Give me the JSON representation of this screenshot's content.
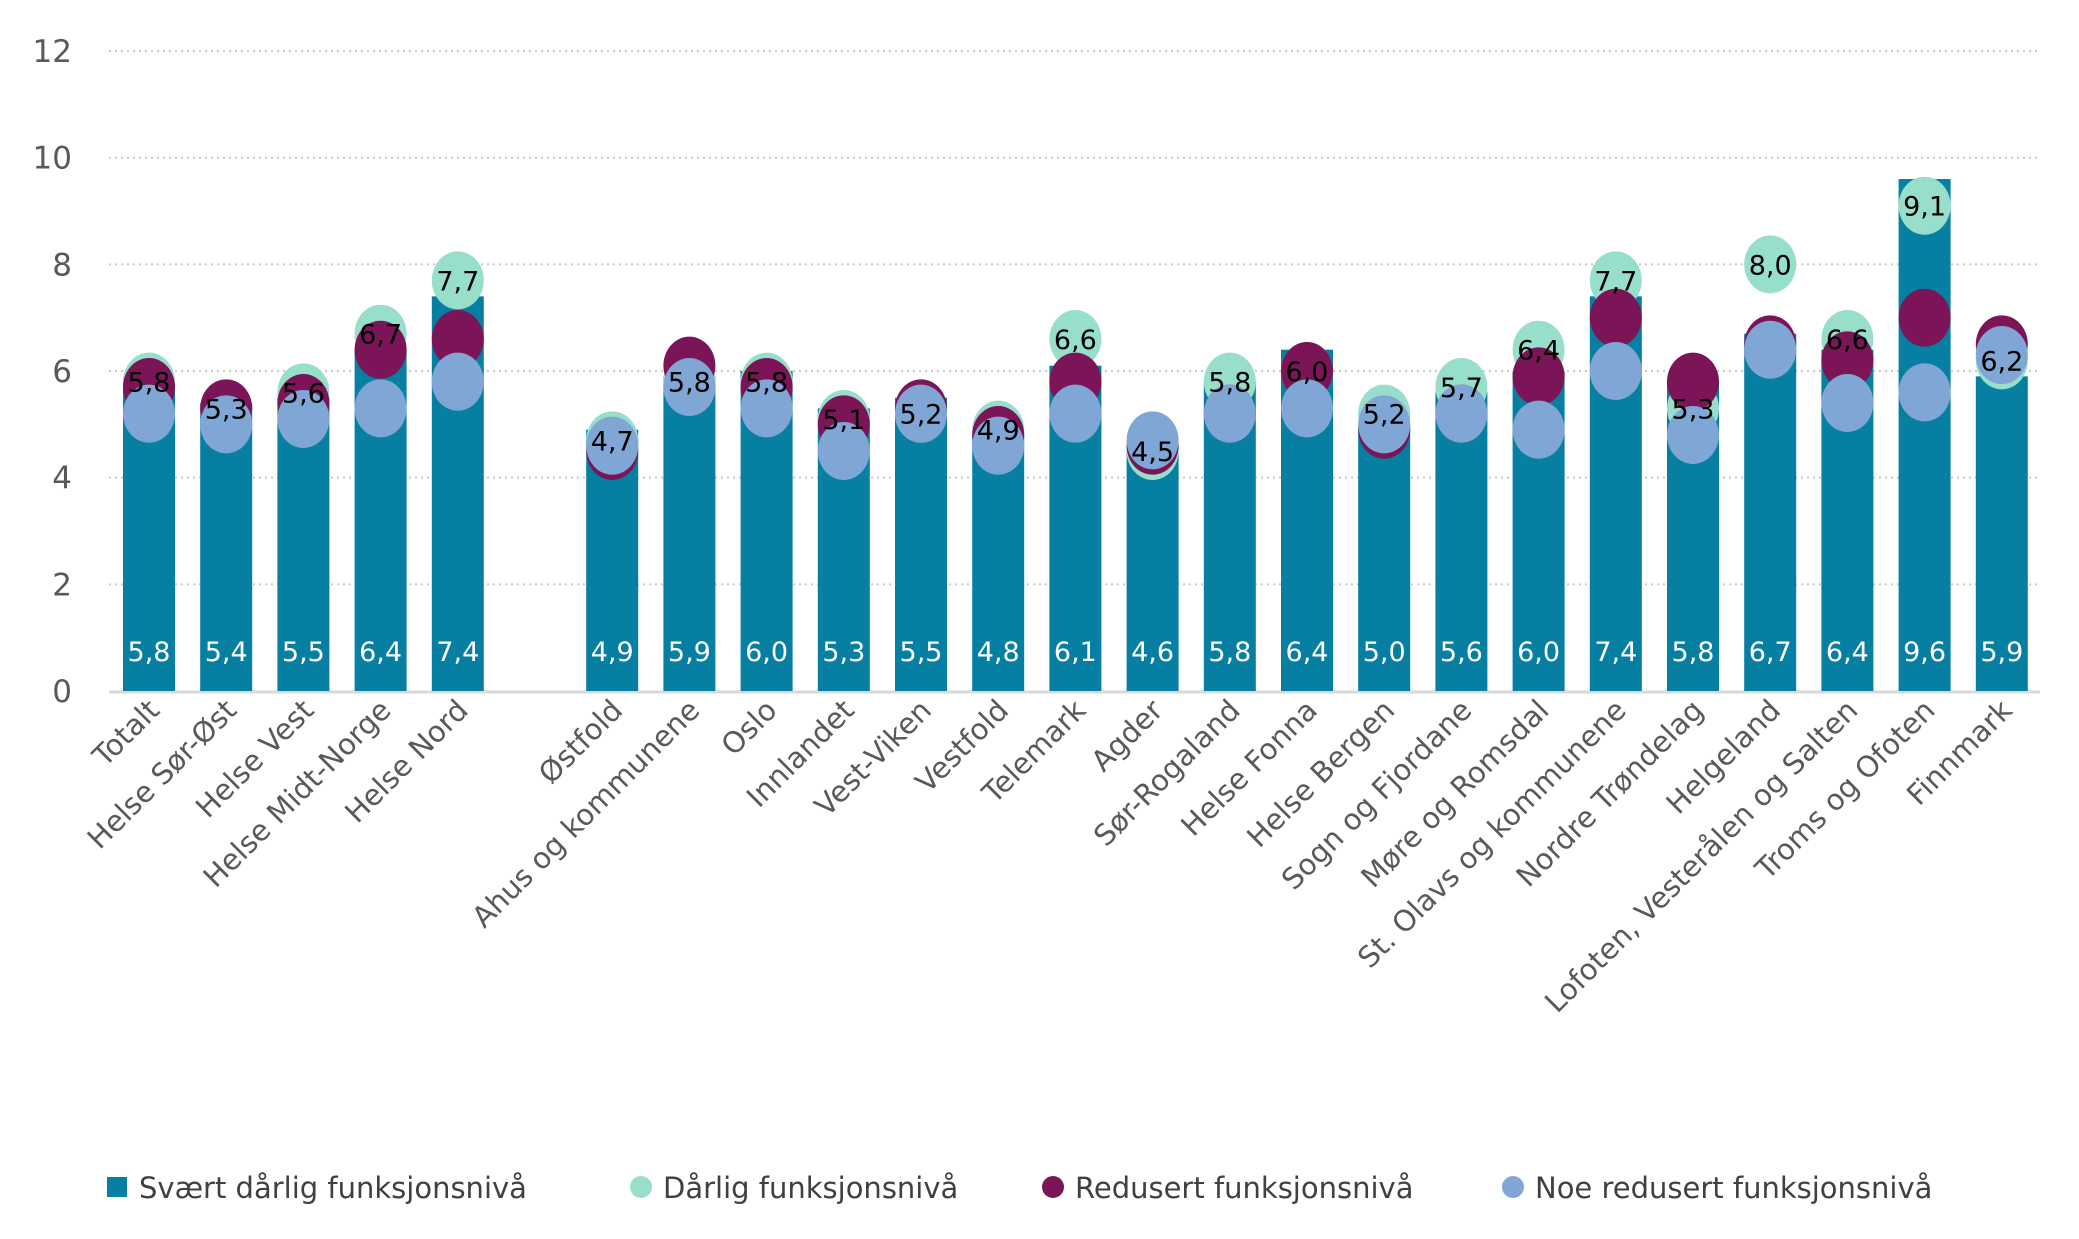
{
  "chart_data": {
    "type": "bar",
    "title": "",
    "xlabel": "",
    "ylabel": "",
    "ylim": [
      0,
      12
    ],
    "yticks": [
      "0",
      "2",
      "4",
      "6",
      "8",
      "10",
      "12"
    ],
    "grid": true,
    "legend_position": "bottom",
    "categories": [
      "Totalt",
      "Helse Sør-Øst",
      "Helse Vest",
      "Helse Midt-Norge",
      "Helse Nord",
      "",
      "Østfold",
      "Ahus og kommunene",
      "Oslo",
      "Innlandet",
      "Vest-Viken",
      "Vestfold",
      "Telemark",
      "Agder",
      "Sør-Rogaland",
      "Helse Fonna",
      "Helse Bergen",
      "Sogn og Fjordane",
      "Møre og Romsdal",
      "St. Olavs og kommunene",
      "Nordre Trøndelag",
      "Helgeland",
      "Lofoten, Vesterålen og Salten",
      "Troms og Ofoten",
      "Finnmark"
    ],
    "series": [
      {
        "name": "Svært dårlig funksjonsnivå",
        "kind": "bar",
        "color": "#067FA3",
        "labeled": true,
        "values": [
          5.8,
          5.4,
          5.5,
          6.4,
          7.4,
          null,
          4.9,
          5.9,
          6.0,
          5.3,
          5.5,
          4.8,
          6.1,
          4.6,
          5.8,
          6.4,
          5.0,
          5.6,
          6.0,
          7.4,
          5.8,
          6.7,
          6.4,
          9.6,
          5.9
        ]
      },
      {
        "name": "Dårlig funksjonsnivå",
        "kind": "dot",
        "color": "#97DECB",
        "labeled": true,
        "values": [
          5.8,
          5.3,
          5.6,
          6.7,
          7.7,
          null,
          4.7,
          5.8,
          5.8,
          5.1,
          5.2,
          4.9,
          6.6,
          4.5,
          5.8,
          6.0,
          5.2,
          5.7,
          6.4,
          7.7,
          5.3,
          8.0,
          6.6,
          9.1,
          6.2
        ]
      },
      {
        "name": "Redusert funksjonsnivå",
        "kind": "dot",
        "color": "#7B1558",
        "labeled": false,
        "values": [
          5.7,
          5.3,
          5.4,
          6.4,
          6.6,
          null,
          4.5,
          6.1,
          5.7,
          5.0,
          5.3,
          4.8,
          5.8,
          4.6,
          5.2,
          6.0,
          4.9,
          5.2,
          5.9,
          7.0,
          5.8,
          6.5,
          6.2,
          7.0,
          6.5
        ]
      },
      {
        "name": "Noe redusert funksjonsnivå",
        "kind": "dot",
        "color": "#7FA6D4",
        "labeled": false,
        "values": [
          5.2,
          5.0,
          5.1,
          5.3,
          5.8,
          null,
          4.6,
          5.7,
          5.3,
          4.5,
          5.2,
          4.6,
          5.2,
          4.7,
          5.2,
          5.3,
          5.0,
          5.2,
          4.9,
          6.0,
          4.8,
          6.4,
          5.4,
          5.6,
          6.3
        ]
      }
    ]
  }
}
